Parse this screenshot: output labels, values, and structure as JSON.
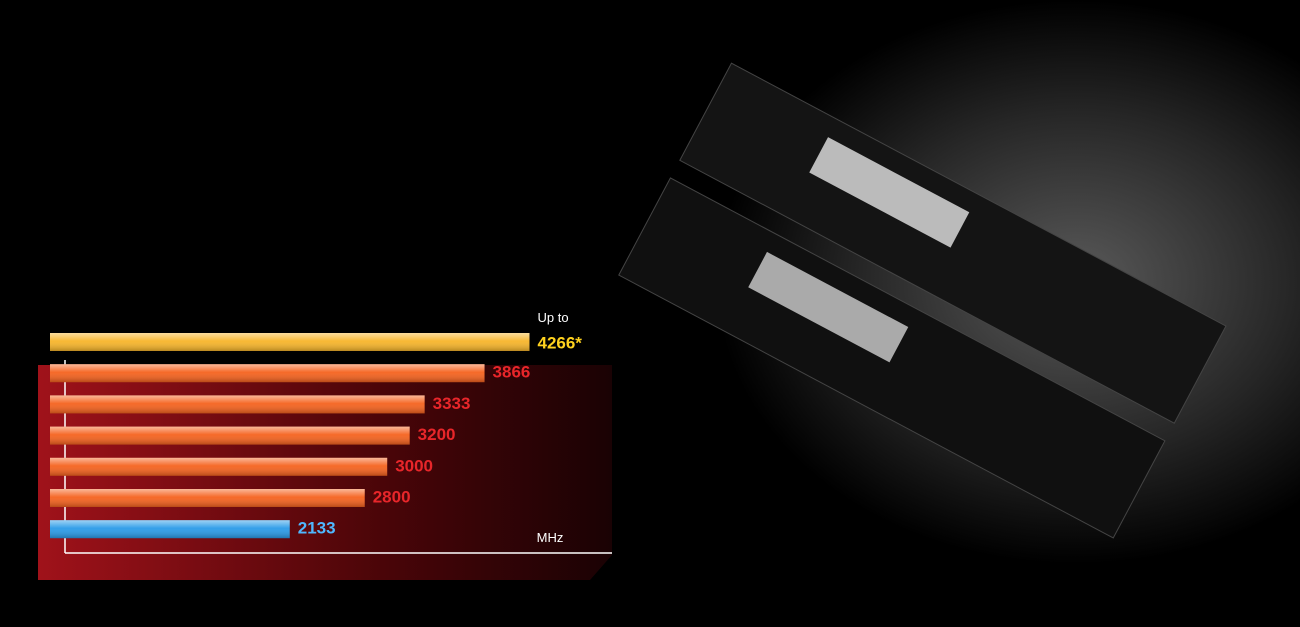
{
  "chart_data": {
    "type": "bar",
    "orientation": "horizontal",
    "values": [
      4266,
      3866,
      3333,
      3200,
      3000,
      2800,
      2133
    ],
    "value_labels": [
      "4266*",
      "3866",
      "3333",
      "3200",
      "3000",
      "2800",
      "2133"
    ],
    "colors": [
      "#f7b52a",
      "#f5621e",
      "#f5621e",
      "#f5621e",
      "#f5621e",
      "#f5621e",
      "#2a9be8"
    ],
    "label_colors": [
      "#ffd21e",
      "#e8262a",
      "#e8262a",
      "#e8262a",
      "#e8262a",
      "#e8262a",
      "#4fb8ff"
    ],
    "annotation": "Up to",
    "x_label": "MHz",
    "xlim": [
      0,
      5000
    ]
  }
}
